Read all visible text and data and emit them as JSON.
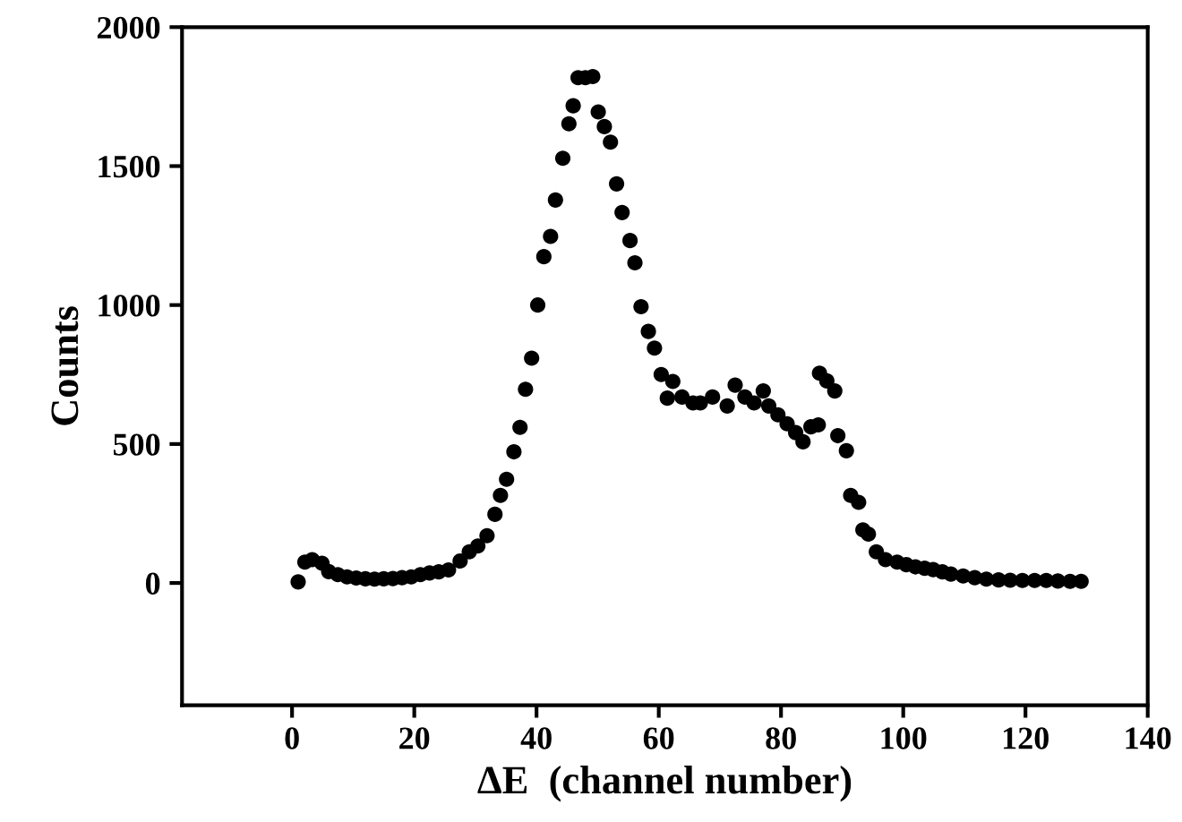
{
  "chart_data": {
    "type": "scatter",
    "xlabel": "ΔE  (channel number)",
    "ylabel": "Counts",
    "xlim": [
      -18,
      140
    ],
    "xticks": [
      0,
      20,
      40,
      60,
      80,
      100,
      120,
      140
    ],
    "ylim": [
      -440,
      2000
    ],
    "yticks": [
      0,
      500,
      1000,
      1500,
      2000
    ],
    "grid": false,
    "marker": "circle",
    "series": [
      {
        "color": "#000000",
        "x": [
          1,
          2.1,
          3.3,
          4.9,
          6,
          7.5,
          9,
          10.5,
          12,
          13.5,
          15,
          16.5,
          18,
          19.5,
          21,
          22.5,
          24,
          25.6,
          27.5,
          29,
          30.4,
          31.9,
          33.2,
          34.1,
          35.1,
          36.3,
          37.3,
          38.2,
          39.2,
          40.2,
          41.2,
          42.3,
          43.1,
          44.3,
          45.3,
          46,
          46.8,
          48,
          49.2,
          50.1,
          51.1,
          52.1,
          53.1,
          54,
          55.3,
          56.1,
          57.1,
          58.3,
          59.3,
          60.4,
          61.4,
          62.3,
          63.8,
          65.6,
          66.8,
          68.8,
          71.2,
          72.5,
          74.1,
          75.6,
          77.1,
          78,
          79.5,
          81,
          82.4,
          83.6,
          84.9,
          86.1,
          86.3,
          87.5,
          88.8,
          89.3,
          90.7,
          91.4,
          92.7,
          93.4,
          94.3,
          95.6,
          97.1,
          99,
          100.5,
          102,
          103.5,
          104.9,
          106.4,
          107.8,
          109.8,
          111.7,
          113.6,
          115.6,
          117.5,
          119.5,
          121.5,
          123.4,
          125.3,
          127.3,
          129.1
        ],
        "values": [
          4,
          75,
          84,
          71,
          41,
          30,
          22,
          18,
          15,
          14,
          15,
          16,
          19,
          22,
          30,
          36,
          40,
          47,
          79,
          112,
          133,
          170,
          247,
          315,
          373,
          472,
          560,
          697,
          809,
          1000,
          1174,
          1247,
          1378,
          1528,
          1652,
          1717,
          1818,
          1818,
          1822,
          1695,
          1642,
          1586,
          1436,
          1333,
          1232,
          1152,
          994,
          905,
          845,
          750,
          665,
          725,
          669,
          648,
          648,
          669,
          637,
          712,
          669,
          648,
          691,
          637,
          605,
          573,
          541,
          508,
          562,
          569,
          755,
          727,
          691,
          530,
          476,
          315,
          290,
          191,
          176,
          112,
          84,
          75,
          66,
          58,
          53,
          48,
          40,
          32,
          25,
          19,
          14,
          11,
          10,
          9,
          9,
          9,
          7,
          6,
          6
        ]
      }
    ]
  }
}
